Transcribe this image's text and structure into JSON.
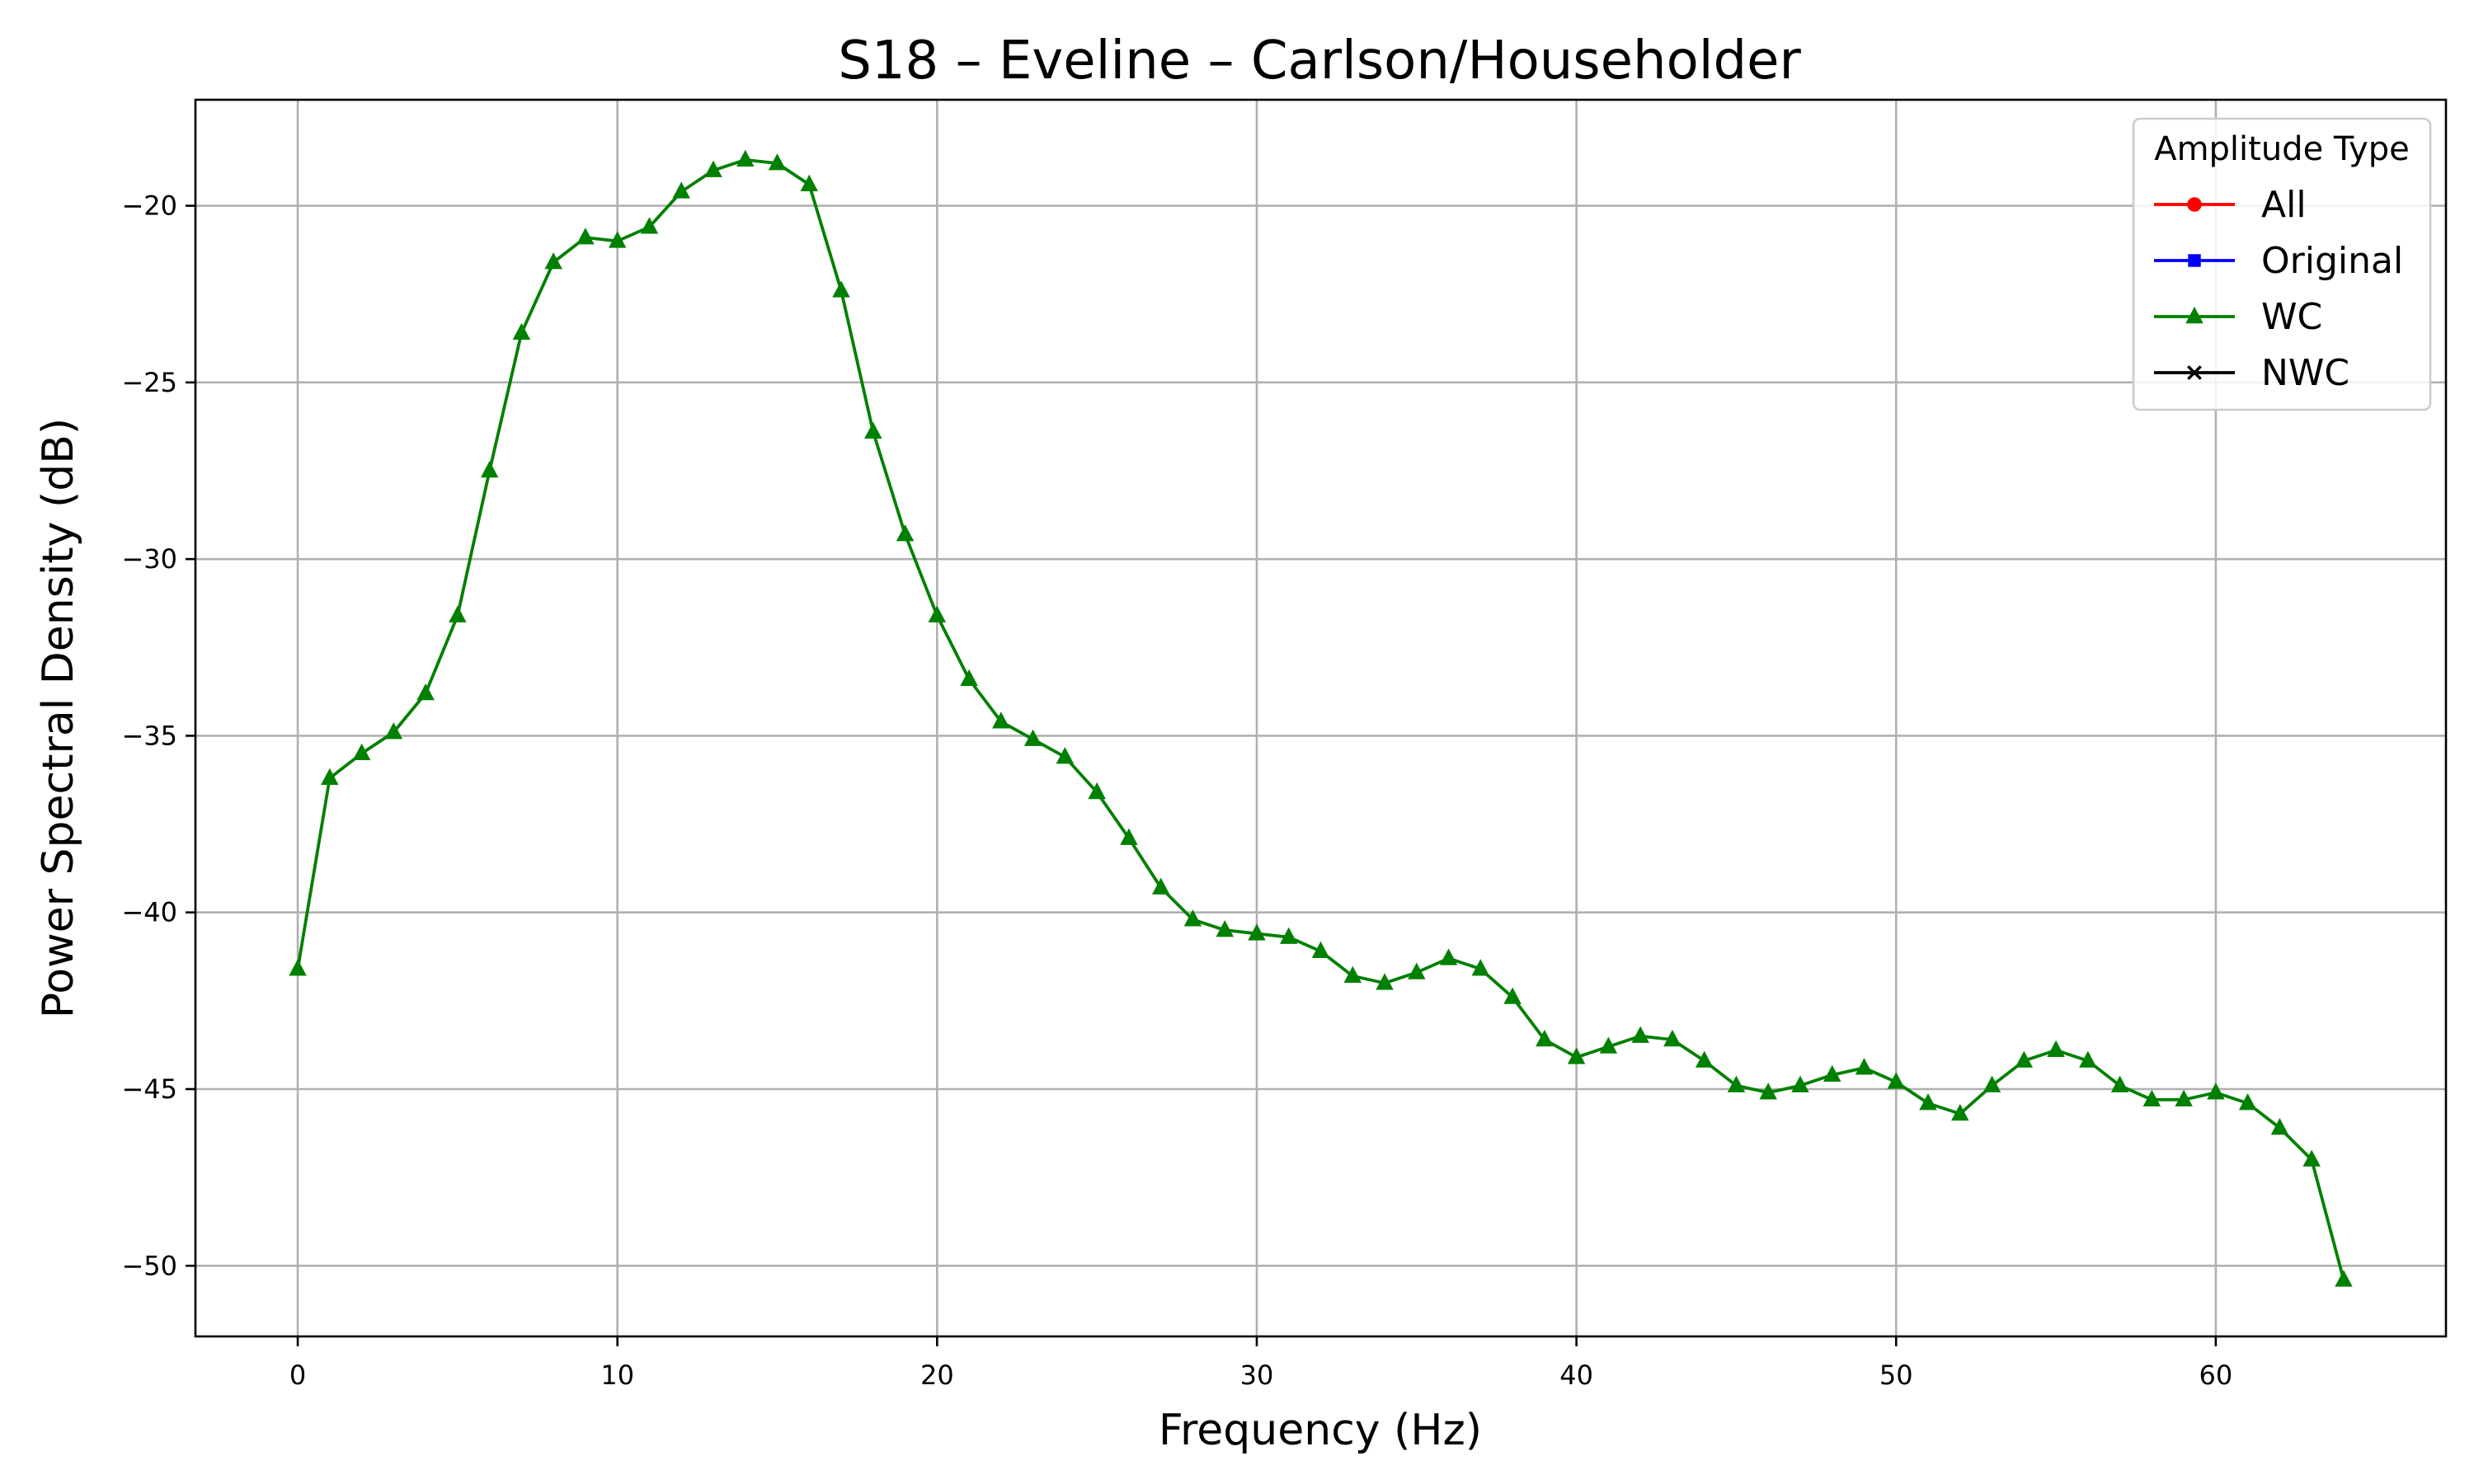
{
  "chart_data": {
    "type": "line",
    "title": "S18 – Eveline – Carlson/Householder",
    "xlabel": "Frequency (Hz)",
    "ylabel": "Power Spectral Density (dB)",
    "xlim": [
      -3.2,
      67.2
    ],
    "ylim": [
      -52.0,
      -17.0
    ],
    "x_ticks": [
      0,
      10,
      20,
      30,
      40,
      50,
      60
    ],
    "y_ticks": [
      -20,
      -25,
      -30,
      -35,
      -40,
      -45,
      -50
    ],
    "x_tick_labels": [
      "0",
      "10",
      "20",
      "30",
      "40",
      "50",
      "60"
    ],
    "y_tick_labels": [
      "−20",
      "−25",
      "−30",
      "−35",
      "−40",
      "−45",
      "−50"
    ],
    "grid": true,
    "legend": {
      "title": "Amplitude Type",
      "placement": "top-right",
      "entries": [
        {
          "name": "All",
          "color": "#ff0000",
          "marker": "circle"
        },
        {
          "name": "Original",
          "color": "#0000ff",
          "marker": "square"
        },
        {
          "name": "WC",
          "color": "#008000",
          "marker": "triangle"
        },
        {
          "name": "NWC",
          "color": "#000000",
          "marker": "x"
        }
      ]
    },
    "series": [
      {
        "name": "WC",
        "color": "#008000",
        "marker": "triangle",
        "x": [
          0,
          1,
          2,
          3,
          4,
          5,
          6,
          7,
          8,
          9,
          10,
          11,
          12,
          13,
          14,
          15,
          16,
          17,
          18,
          19,
          20,
          21,
          22,
          23,
          24,
          25,
          26,
          27,
          28,
          29,
          30,
          31,
          32,
          33,
          34,
          35,
          36,
          37,
          38,
          39,
          40,
          41,
          42,
          43,
          44,
          45,
          46,
          47,
          48,
          49,
          50,
          51,
          52,
          53,
          54,
          55,
          56,
          57,
          58,
          59,
          60,
          61,
          62,
          63,
          64
        ],
        "y": [
          -41.6,
          -36.2,
          -35.5,
          -34.9,
          -33.8,
          -31.6,
          -27.5,
          -23.6,
          -21.6,
          -20.9,
          -21.0,
          -20.6,
          -19.6,
          -19.0,
          -18.7,
          -18.8,
          -19.4,
          -22.4,
          -26.4,
          -29.3,
          -31.6,
          -33.4,
          -34.6,
          -35.1,
          -35.6,
          -36.6,
          -37.9,
          -39.3,
          -40.2,
          -40.5,
          -40.6,
          -40.7,
          -41.1,
          -41.8,
          -42.0,
          -41.7,
          -41.3,
          -41.6,
          -42.4,
          -43.6,
          -44.1,
          -43.8,
          -43.5,
          -43.6,
          -44.2,
          -44.9,
          -45.1,
          -44.9,
          -44.6,
          -44.4,
          -44.8,
          -45.4,
          -45.7,
          -44.9,
          -44.2,
          -43.9,
          -44.2,
          -44.9,
          -45.3,
          -45.3,
          -45.1,
          -45.4,
          -46.1,
          -47.0,
          -50.4
        ]
      }
    ]
  }
}
